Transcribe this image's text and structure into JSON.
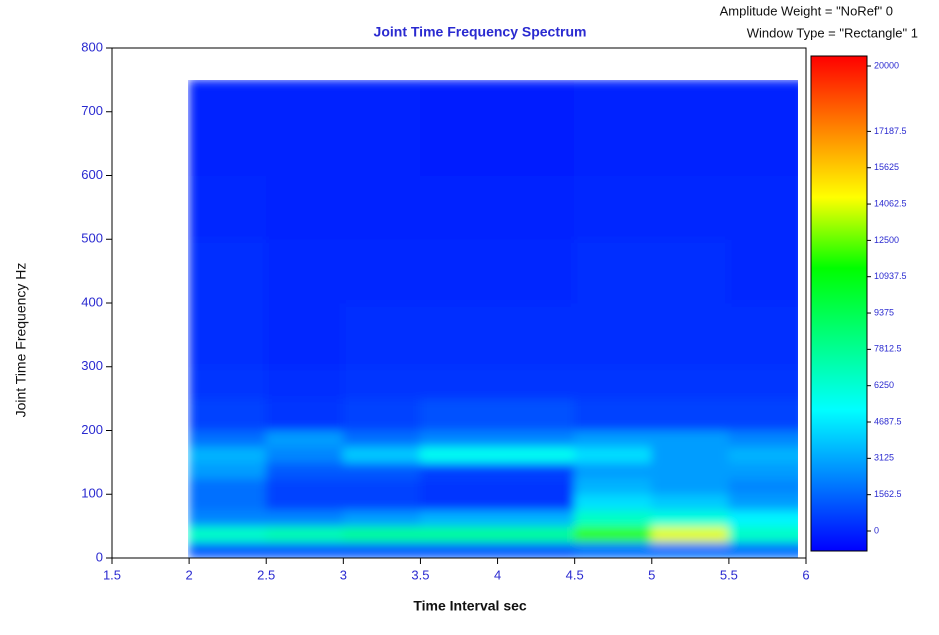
{
  "chart_data": {
    "type": "heatmap",
    "title": "Joint Time Frequency Spectrum",
    "annotations": [
      "Amplitude Weight = \"NoRef\"  0",
      "Window Type = \"Rectangle\"  1"
    ],
    "x_label": "Time Interval  sec",
    "y_label": "Joint Time Frequency  Hz",
    "x": [
      2,
      2.5,
      3,
      3.5,
      4,
      4.5,
      5,
      5.5,
      6
    ],
    "y": [
      0,
      25,
      50,
      75,
      100,
      125,
      150,
      175,
      200,
      250,
      300,
      400,
      500,
      600,
      750
    ],
    "values": [
      [
        2000,
        2000,
        2000,
        2000,
        2000,
        2500,
        2500,
        2500
      ],
      [
        7000,
        7500,
        8000,
        8000,
        8000,
        12000,
        14000,
        7000
      ],
      [
        3000,
        3000,
        3500,
        4000,
        4000,
        7000,
        6500,
        5500
      ],
      [
        2500,
        1500,
        1500,
        1200,
        1200,
        5000,
        4500,
        3500
      ],
      [
        2500,
        1500,
        1500,
        1200,
        1200,
        4000,
        3500,
        3000
      ],
      [
        3500,
        2000,
        2000,
        1500,
        1500,
        3500,
        3500,
        3500
      ],
      [
        4000,
        3000,
        4500,
        6000,
        6000,
        5000,
        3500,
        4000
      ],
      [
        2500,
        3500,
        2500,
        3000,
        3000,
        3500,
        3500,
        3000
      ],
      [
        1500,
        1200,
        1500,
        1800,
        1800,
        1500,
        1500,
        1500
      ],
      [
        1200,
        1000,
        1200,
        1200,
        1200,
        1200,
        1200,
        1200
      ],
      [
        1000,
        900,
        1000,
        1000,
        1000,
        1000,
        1000,
        1000
      ],
      [
        1000,
        900,
        900,
        900,
        900,
        1000,
        1000,
        900
      ],
      [
        900,
        800,
        800,
        800,
        800,
        900,
        900,
        900
      ],
      [
        800,
        800,
        800,
        700,
        700,
        800,
        800,
        800
      ]
    ],
    "xlim": [
      1.5,
      6
    ],
    "xticks": [
      1.5,
      2,
      2.5,
      3,
      3.5,
      4,
      4.5,
      5,
      5.5,
      6
    ],
    "ylim": [
      0,
      800
    ],
    "yticks": [
      0,
      100,
      200,
      300,
      400,
      500,
      600,
      700,
      800
    ],
    "clim": [
      0,
      20000
    ],
    "cticks": [
      0,
      1562.5,
      3125,
      4687.5,
      6250,
      7812.5,
      9375,
      10937.5,
      12500,
      14062.5,
      15625,
      17187.5,
      20000
    ],
    "colormap": [
      "#0000ff",
      "#0080ff",
      "#00ffff",
      "#00ff80",
      "#00ff00",
      "#ffff00",
      "#ff8000",
      "#ff0000"
    ]
  }
}
